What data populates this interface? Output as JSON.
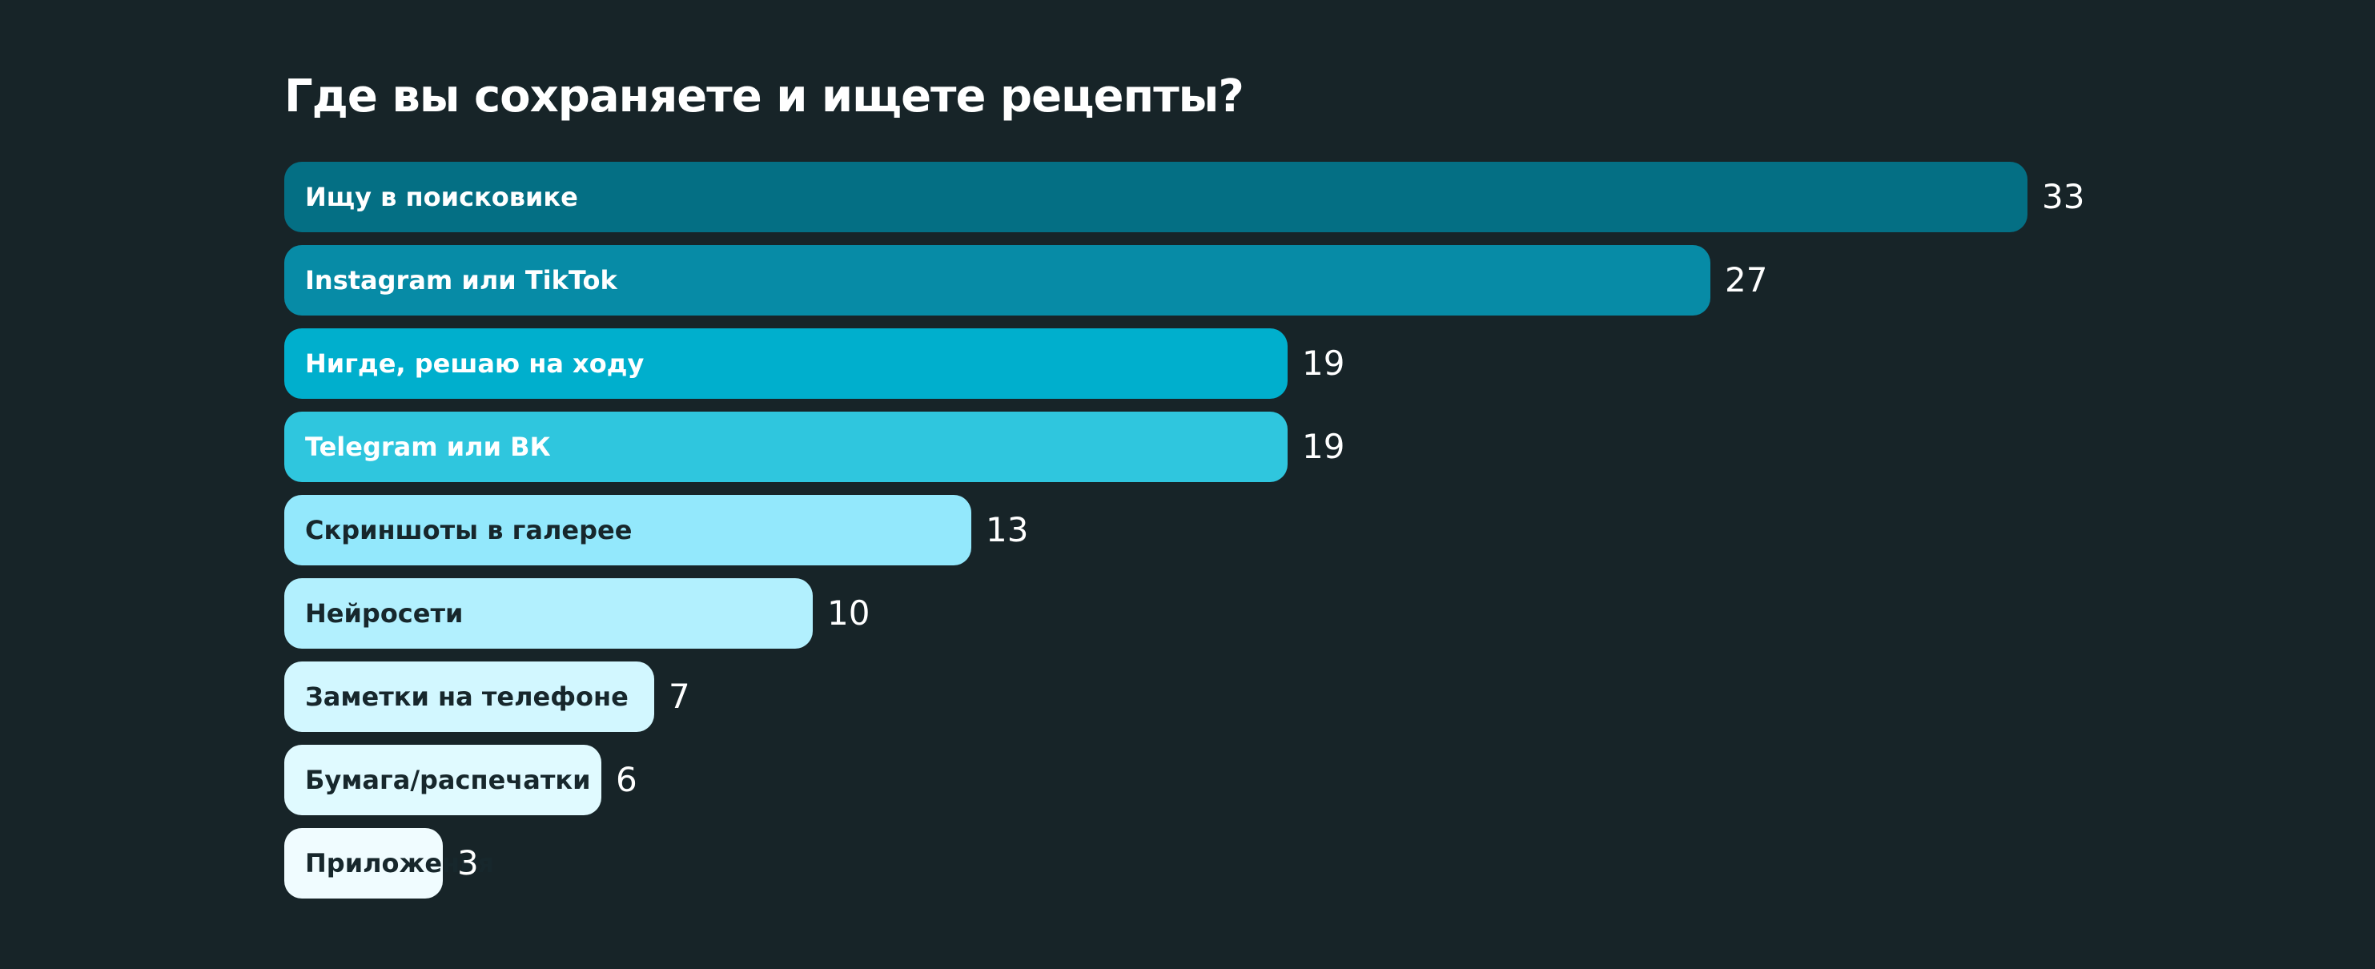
{
  "chart_data": {
    "type": "bar",
    "orientation": "horizontal",
    "title": "Где вы сохраняете и ищете рецепты?",
    "categories": [
      "Ищу в поисковике",
      "Instagram или TikTok",
      "Нигде, решаю на ходу",
      "Telegram или ВК",
      "Скриншоты в галерее",
      "Нейросети",
      "Заметки на телефоне",
      "Бумага/распечатки",
      "Приложения"
    ],
    "values": [
      33,
      27,
      19,
      19,
      13,
      10,
      7,
      6,
      3
    ],
    "value_labels": [
      "33",
      "27",
      "19",
      "19",
      "13",
      "10",
      "7",
      "6",
      "3"
    ],
    "bar_colors": [
      "#046f84",
      "#078ba6",
      "#00afcd",
      "#2fc6de",
      "#93e8fc",
      "#b2f0fe",
      "#d2f7ff",
      "#e0faff",
      "#f0fcff"
    ],
    "label_colors": [
      "#ffffff",
      "#ffffff",
      "#ffffff",
      "#ffffff",
      "#17272c",
      "#17272c",
      "#17272c",
      "#17272c",
      "#17272c"
    ],
    "xlabel": "",
    "ylabel": "",
    "grid": false,
    "legend": "none"
  }
}
